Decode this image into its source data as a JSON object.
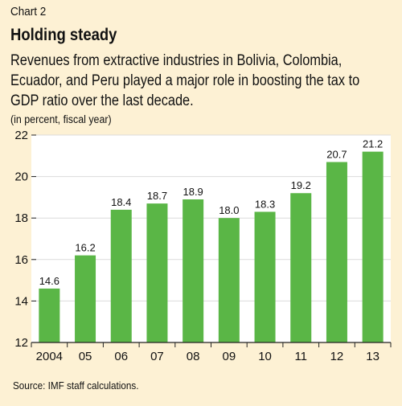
{
  "header": {
    "chart_number": "Chart 2",
    "title": "Holding steady",
    "subtitle": "Revenues from extractive industries in Bolivia, Colombia, Ecuador, and Peru played a major role in boosting the tax to GDP ratio over the last decade.",
    "units": "(in percent, fiscal year)"
  },
  "footer": {
    "source": "Source: IMF staff calculations."
  },
  "colors": {
    "background": "#fdf1d4",
    "plot_background": "#ffffff",
    "bar": "#5ab646",
    "gridline": "#dcdcdc",
    "axis": "#222222"
  },
  "chart_data": {
    "type": "bar",
    "title": "Holding steady",
    "categories": [
      "2004",
      "05",
      "06",
      "07",
      "08",
      "09",
      "10",
      "11",
      "12",
      "13"
    ],
    "values": [
      14.6,
      16.2,
      18.4,
      18.7,
      18.9,
      18.0,
      18.3,
      19.2,
      20.7,
      21.2
    ],
    "value_labels": [
      "14.6",
      "16.2",
      "18.4",
      "18.7",
      "18.9",
      "18.0",
      "18.3",
      "19.2",
      "20.7",
      "21.2"
    ],
    "ylim": [
      12,
      22
    ],
    "yticks": [
      12,
      14,
      16,
      18,
      20,
      22
    ],
    "ytick_labels": [
      "12",
      "14",
      "16",
      "18",
      "20",
      "22"
    ],
    "xlabel": "",
    "ylabel": "",
    "grid": true,
    "legend": "none"
  }
}
